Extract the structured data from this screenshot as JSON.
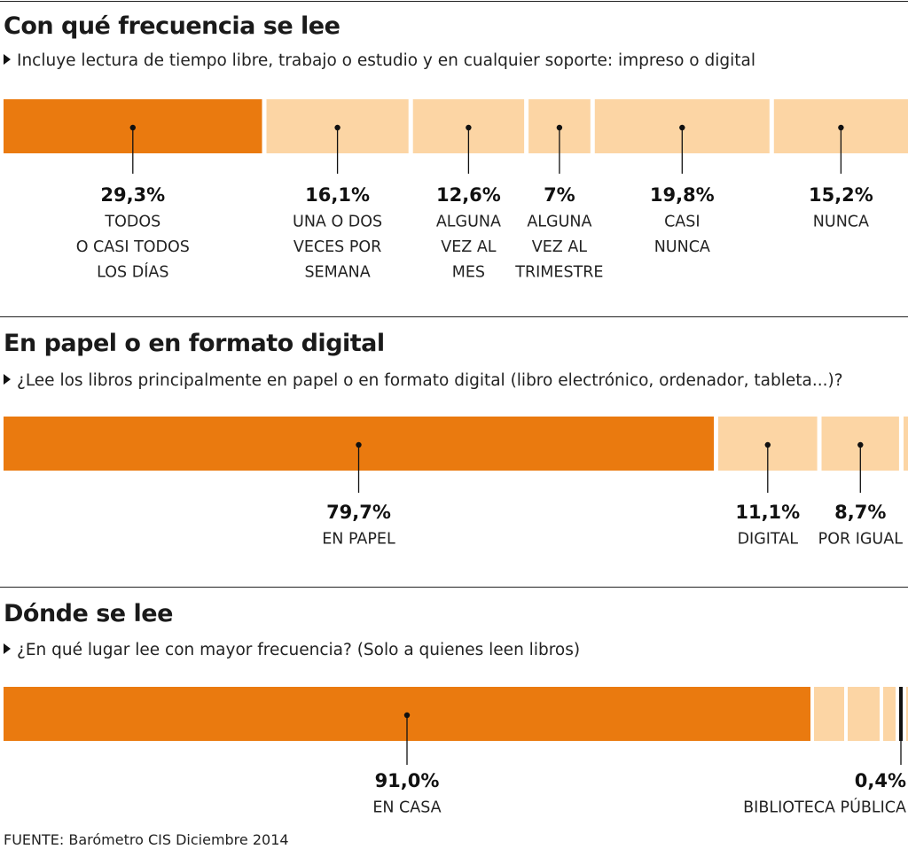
{
  "colors": {
    "highlight": "#ea7a0f",
    "light": "#fcd5a4",
    "marker": "#111111"
  },
  "chart_data": [
    {
      "type": "bar",
      "title": "Con qué frecuencia se lee",
      "subtitle": "Incluye lectura de tiempo libre, trabajo o estudio y en cualquier soporte: impreso o digital",
      "unit": "%",
      "segments": [
        {
          "value": 29.3,
          "value_label": "29,3%",
          "label_lines": [
            "TODOS",
            "O CASI TODOS",
            "LOS DÍAS"
          ],
          "highlight": true
        },
        {
          "value": 16.1,
          "value_label": "16,1%",
          "label_lines": [
            "UNA O DOS",
            "VECES POR",
            "SEMANA"
          ],
          "highlight": false
        },
        {
          "value": 12.6,
          "value_label": "12,6%",
          "label_lines": [
            "ALGUNA",
            "VEZ AL",
            "MES"
          ],
          "highlight": false
        },
        {
          "value": 7,
          "value_label": "7%",
          "label_lines": [
            "ALGUNA",
            "VEZ AL",
            "TRIMESTRE"
          ],
          "highlight": false
        },
        {
          "value": 19.8,
          "value_label": "19,8%",
          "label_lines": [
            "CASI",
            "NUNCA"
          ],
          "highlight": false
        },
        {
          "value": 15.2,
          "value_label": "15,2%",
          "label_lines": [
            "NUNCA"
          ],
          "highlight": false
        }
      ]
    },
    {
      "type": "bar",
      "title": "En papel o en formato digital",
      "subtitle": "¿Lee los libros principalmente en papel o en formato digital (libro electrónico, ordenador, tableta...)?",
      "unit": "%",
      "segments": [
        {
          "value": 79.7,
          "value_label": "79,7%",
          "label_lines": [
            "EN PAPEL"
          ],
          "highlight": true
        },
        {
          "value": 11.1,
          "value_label": "11,1%",
          "label_lines": [
            "DIGITAL"
          ],
          "highlight": false
        },
        {
          "value": 8.7,
          "value_label": "8,7%",
          "label_lines": [
            "POR IGUAL"
          ],
          "highlight": false
        },
        {
          "value": 0.5,
          "value_label": "",
          "label_lines": [],
          "highlight": false
        }
      ]
    },
    {
      "type": "bar",
      "title": "Dónde se lee",
      "subtitle": "¿En qué lugar lee con mayor frecuencia? (Solo a quienes leen libros)",
      "unit": "%",
      "segments": [
        {
          "value": 91.0,
          "value_label": "91,0%",
          "label_lines": [
            "EN CASA"
          ],
          "highlight": true
        },
        {
          "value": 3.4,
          "value_label": "",
          "label_lines": [],
          "highlight": false
        },
        {
          "value": 3.6,
          "value_label": "",
          "label_lines": [],
          "highlight": false
        },
        {
          "value": 1.4,
          "value_label": "",
          "label_lines": [],
          "highlight": false
        },
        {
          "value": 0.4,
          "value_label": "0,4%",
          "label_lines": [
            "BIBLIOTECA PÚBLICA"
          ],
          "highlight": false,
          "dark": true
        },
        {
          "value": 0.2,
          "value_label": "",
          "label_lines": [],
          "highlight": false
        }
      ]
    }
  ],
  "source": "FUENTE: Barómetro CIS Diciembre 2014"
}
